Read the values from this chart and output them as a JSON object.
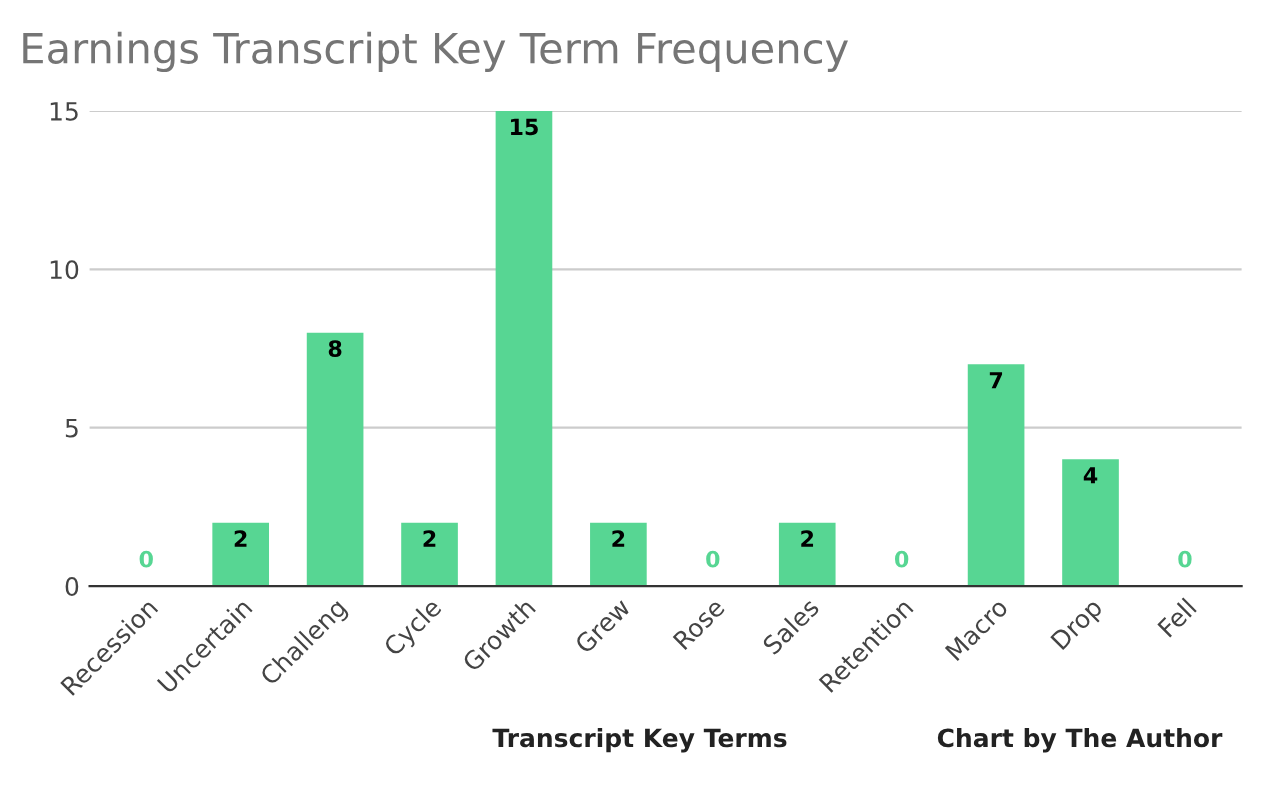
{
  "chart_data": {
    "type": "bar",
    "title": "Earnings Transcript Key Term Frequency",
    "xlabel": "Transcript Key Terms",
    "categories": [
      "Recession",
      "Uncertain",
      "Challeng",
      "Cycle",
      "Growth",
      "Grew",
      "Rose",
      "Sales",
      "Retention",
      "Macro",
      "Drop",
      "Fell"
    ],
    "values": [
      0,
      2,
      8,
      2,
      15,
      2,
      0,
      2,
      0,
      7,
      4,
      0
    ],
    "color": "#57d693",
    "ylim": [
      0,
      15
    ],
    "yticks": [
      0,
      5,
      10,
      15
    ],
    "grid": "y",
    "data_labels": true,
    "legend": false,
    "annotations": [
      "Chart by The Author"
    ]
  }
}
